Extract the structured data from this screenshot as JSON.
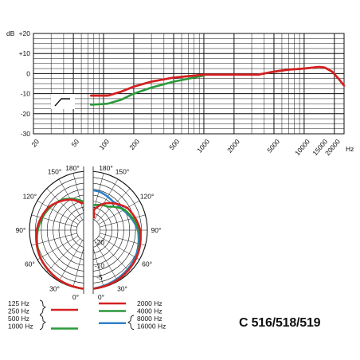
{
  "chart_data": [
    {
      "type": "line",
      "x_scale": "log",
      "xlim": [
        20,
        25000
      ],
      "ylim": [
        -30,
        20
      ],
      "ylabel": "dB",
      "xlabel": "Hz",
      "x_ticks": [
        "20",
        "50",
        "100",
        "200",
        "500",
        "1000",
        "2000",
        "5000",
        "10000",
        "15000",
        "20000"
      ],
      "x_tick_values": [
        20,
        50,
        100,
        200,
        500,
        1000,
        2000,
        5000,
        10000,
        15000,
        20000
      ],
      "y_ticks": [
        "+20",
        "+10",
        "0",
        "-10",
        "-20",
        "-30"
      ],
      "y_tick_values": [
        20,
        10,
        0,
        -10,
        -20,
        -30
      ],
      "series": [
        {
          "color": "#d42020",
          "points": [
            [
              75,
              -11
            ],
            [
              110,
              -11
            ],
            [
              150,
              -9
            ],
            [
              200,
              -6.5
            ],
            [
              300,
              -4
            ],
            [
              500,
              -2
            ],
            [
              800,
              -1
            ],
            [
              1000,
              -0.5
            ],
            [
              2000,
              -0.5
            ],
            [
              3500,
              -0.5
            ],
            [
              5000,
              1
            ],
            [
              7000,
              2
            ],
            [
              10000,
              2.5
            ],
            [
              14000,
              3.3
            ],
            [
              16000,
              3
            ],
            [
              19000,
              1
            ],
            [
              22000,
              -2.5
            ],
            [
              25000,
              -6
            ]
          ]
        },
        {
          "color": "#2a9a3a",
          "points": [
            [
              75,
              -15.5
            ],
            [
              110,
              -15
            ],
            [
              150,
              -13
            ],
            [
              200,
              -10
            ],
            [
              300,
              -7
            ],
            [
              500,
              -4
            ],
            [
              800,
              -2
            ],
            [
              1000,
              -1
            ]
          ]
        }
      ],
      "cutoff_symbol": true,
      "grid": true
    },
    {
      "type": "polar",
      "angle_ticks": [
        "0°",
        "30°",
        "60°",
        "90°",
        "120°",
        "150°",
        "180°",
        "30°",
        "60°",
        "90°",
        "120°",
        "150°",
        "180°",
        "0°"
      ],
      "radial_ticks": [
        "-20",
        "-10",
        "-5"
      ],
      "r_range_db": [
        -25,
        0
      ],
      "left_half": [
        {
          "color": "#d42020",
          "label": "125 Hz, 250 Hz",
          "points_deg_db": [
            [
              0,
              0
            ],
            [
              30,
              -0.5
            ],
            [
              60,
              -1.5
            ],
            [
              90,
              -3
            ],
            [
              120,
              -5.5
            ],
            [
              150,
              -10
            ],
            [
              165,
              -13
            ],
            [
              180,
              -14
            ]
          ]
        },
        {
          "color": "#2a9a3a",
          "label": "500 Hz, 1000 Hz",
          "points_deg_db": [
            [
              0,
              0
            ],
            [
              30,
              -0.5
            ],
            [
              60,
              -1.5
            ],
            [
              90,
              -3.5
            ],
            [
              120,
              -6
            ],
            [
              140,
              -8
            ],
            [
              165,
              -12
            ],
            [
              180,
              -14
            ]
          ]
        }
      ],
      "right_half": [
        {
          "color": "#d42020",
          "label": "2000 Hz",
          "points_deg_db": [
            [
              0,
              0
            ],
            [
              30,
              -0.5
            ],
            [
              60,
              -1.5
            ],
            [
              90,
              -3
            ],
            [
              120,
              -6
            ],
            [
              150,
              -12
            ],
            [
              180,
              -20
            ]
          ]
        },
        {
          "color": "#2a9a3a",
          "label": "4000 Hz",
          "points_deg_db": [
            [
              0,
              0
            ],
            [
              30,
              -0.5
            ],
            [
              60,
              -1.5
            ],
            [
              90,
              -3.5
            ],
            [
              120,
              -7.5
            ],
            [
              140,
              -12
            ],
            [
              165,
              -14
            ],
            [
              180,
              -14
            ]
          ]
        },
        {
          "color": "#2f7fc8",
          "label": "8000 Hz, 16000 Hz",
          "points_deg_db": [
            [
              0,
              0
            ],
            [
              30,
              -1
            ],
            [
              60,
              -2
            ],
            [
              90,
              -4
            ],
            [
              120,
              -8
            ],
            [
              140,
              -9
            ],
            [
              165,
              -8
            ],
            [
              180,
              -8
            ]
          ]
        }
      ]
    }
  ],
  "legend": {
    "left": [
      {
        "labels": [
          "125 Hz",
          "250 Hz"
        ],
        "color": "#d42020"
      },
      {
        "labels": [
          "500 Hz",
          "1000 Hz"
        ],
        "color": "#2a9a3a"
      }
    ],
    "right": [
      {
        "labels": [
          "2000 Hz"
        ],
        "color": "#d42020"
      },
      {
        "labels": [
          "4000 Hz"
        ],
        "color": "#2a9a3a"
      },
      {
        "labels": [
          "8000 Hz",
          "16000 Hz"
        ],
        "color": "#2f7fc8"
      }
    ]
  },
  "model_name": "C 516/518/519"
}
